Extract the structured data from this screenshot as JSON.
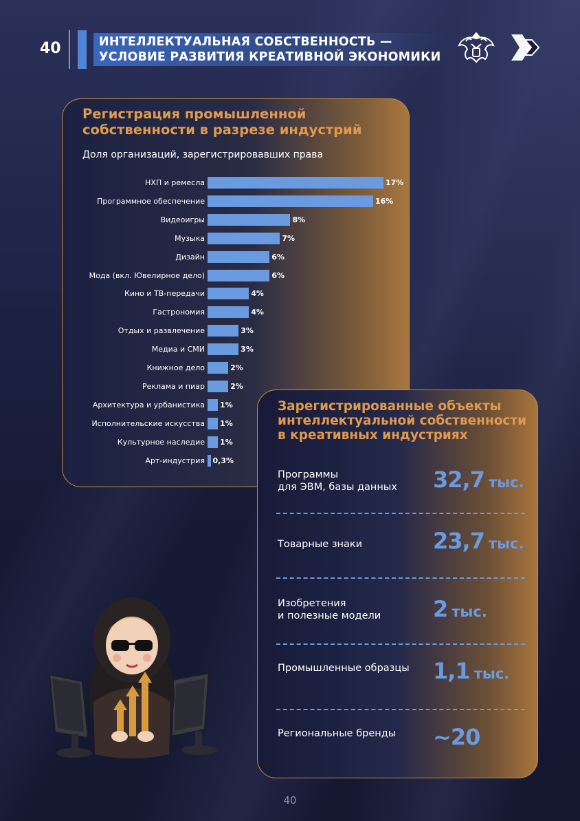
{
  "header": {
    "page_number": "40",
    "title_line1": "ИНТЕЛЛЕКТУАЛЬНАЯ СОБСТВЕННОСТЬ —",
    "title_line2": "УСЛОВИЕ РАЗВИТИЯ КРЕАТИВНОЙ ЭКОНОМИКИ",
    "emblem_icon": "double-headed-eagle-emblem-icon",
    "logo_icon": "arrow-logo-icon"
  },
  "colors": {
    "accent_orange": "#e09a4e",
    "accent_blue": "#6a9be0",
    "background": "#191d3a"
  },
  "registration_card": {
    "title_line1": "Регистрация промышленной",
    "title_line2": "собственности в разрезе индустрий",
    "subtitle": "Доля организаций, зарегистрировавших права"
  },
  "chart_data": {
    "type": "bar",
    "orientation": "horizontal",
    "title": "Регистрация промышленной собственности в разрезе индустрий",
    "subtitle": "Доля организаций, зарегистрировавших права",
    "categories": [
      "НХП и ремесла",
      "Программное обеспечение",
      "Видеоигры",
      "Музыка",
      "Дизайн",
      "Мода (вкл. Ювелирное дело)",
      "Кино и ТВ-передачи",
      "Гастрономия",
      "Отдых и развлечение",
      "Медиа и СМИ",
      "Книжное дело",
      "Реклама и пиар",
      "Архитектура и урбанистика",
      "Исполнительские искусства",
      "Культурное наследие",
      "Арт-индустрия"
    ],
    "values": [
      17,
      16,
      8,
      7,
      6,
      6,
      4,
      4,
      3,
      3,
      2,
      2,
      1,
      1,
      1,
      0.3
    ],
    "value_labels": [
      "17%",
      "16%",
      "8%",
      "7%",
      "6%",
      "6%",
      "4%",
      "4%",
      "3%",
      "3%",
      "2%",
      "2%",
      "1%",
      "1%",
      "1%",
      "0,3%"
    ],
    "xlim": [
      0,
      17
    ],
    "grid": false
  },
  "objects_card": {
    "title_line1": "Зарегистрированные объекты",
    "title_line2": "интеллектуальной собственности",
    "title_line3": "в креативных индустриях",
    "items": [
      {
        "label_line1": "Программы",
        "label_line2": "для ЭВМ, базы данных",
        "value": "32,7",
        "unit": "тыс."
      },
      {
        "label_line1": "Товарные знаки",
        "label_line2": "",
        "value": "23,7",
        "unit": "тыс."
      },
      {
        "label_line1": "Изобретения",
        "label_line2": "и полезные модели",
        "value": "2",
        "unit": "тыс."
      },
      {
        "label_line1": "Промышленные образцы",
        "label_line2": "",
        "value": "1,1",
        "unit": "тыс."
      },
      {
        "label_line1": "Региональные бренды",
        "label_line2": "",
        "value": "~20",
        "unit": ""
      }
    ]
  },
  "illustration": {
    "icon": "matryoshka-with-sunglasses-and-monitors-icon"
  },
  "footer": {
    "page_number": "40"
  }
}
